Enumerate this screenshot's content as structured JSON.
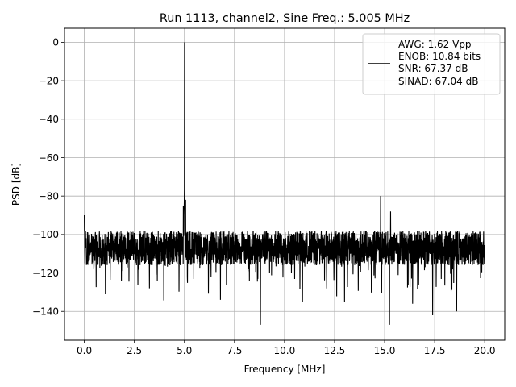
{
  "chart_data": {
    "type": "line",
    "title": "Run 1113, channel2, Sine Freq.: 5.005 MHz",
    "xlabel": "Frequency [MHz]",
    "ylabel": "PSD [dB]",
    "xlim": [
      -0.99,
      21.0
    ],
    "ylim": [
      -155.0,
      7.3
    ],
    "x_ticks": [
      0.0,
      2.5,
      5.0,
      7.5,
      10.0,
      12.5,
      15.0,
      17.5,
      20.0
    ],
    "x_tick_labels": [
      "0.0",
      "2.5",
      "5.0",
      "7.5",
      "10.0",
      "12.5",
      "15.0",
      "17.5",
      "20.0"
    ],
    "y_ticks": [
      0,
      -20,
      -40,
      -60,
      -80,
      -100,
      -120,
      -140
    ],
    "y_tick_labels": [
      "0",
      "−20",
      "−40",
      "−60",
      "−80",
      "−100",
      "−120",
      "−140"
    ],
    "grid": true,
    "legend_position": "upper right",
    "legend_lines": [
      "AWG: 1.62 Vpp",
      "ENOB: 10.84 bits",
      "SNR: 67.37 dB",
      "SINAD: 67.04 dB"
    ],
    "series_color": "#000000",
    "noise_floor_db": -107,
    "fundamental": {
      "x": 5.005,
      "y": 0
    },
    "features": [
      {
        "x": 0.0,
        "y": -90
      },
      {
        "x": 4.95,
        "y": -85
      },
      {
        "x": 5.06,
        "y": -82
      },
      {
        "x": 14.8,
        "y": -80
      },
      {
        "x": 15.3,
        "y": -88
      },
      {
        "x": 6.8,
        "y": -134
      },
      {
        "x": 8.8,
        "y": -147
      },
      {
        "x": 15.25,
        "y": -147
      },
      {
        "x": 17.4,
        "y": -142
      },
      {
        "x": 18.6,
        "y": -140
      },
      {
        "x": 13.0,
        "y": -135
      },
      {
        "x": 16.4,
        "y": -136
      },
      {
        "x": 10.9,
        "y": -135
      }
    ]
  }
}
